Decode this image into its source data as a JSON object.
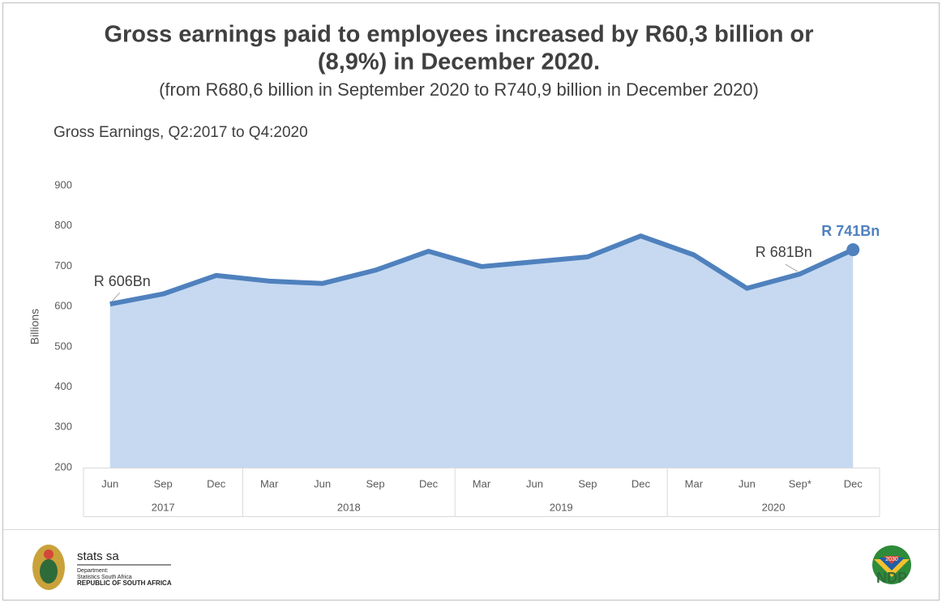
{
  "chart_data": {
    "type": "area-line",
    "title": "Gross earnings paid to employees increased by R60,3 billion or",
    "title_line2": "(8,9%) in December 2020.",
    "subtitle": "(from R680,6 billion in September 2020 to R740,9 billion in December 2020)",
    "chart_title": "Gross Earnings, Q2:2017 to Q4:2020",
    "y_label": "Billions",
    "categories": [
      "Jun",
      "Sep",
      "Dec",
      "Mar",
      "Jun",
      "Sep",
      "Dec",
      "Mar",
      "Jun",
      "Sep",
      "Dec",
      "Mar",
      "Jun",
      "Sep*",
      "Dec"
    ],
    "years": [
      "2017",
      null,
      null,
      "2018",
      null,
      null,
      null,
      "2019",
      null,
      null,
      null,
      "2020",
      null,
      null,
      null
    ],
    "values": [
      606,
      631,
      677,
      663,
      657,
      690,
      737,
      699,
      711,
      723,
      775,
      728,
      645,
      680.6,
      740.9
    ],
    "value_labels": [
      "R 606Bn",
      null,
      null,
      null,
      null,
      null,
      null,
      null,
      null,
      null,
      null,
      null,
      null,
      "R 681Bn",
      "R 741Bn"
    ],
    "color": "#4f81bd",
    "fill": "#c6d9f1",
    "ylim": [
      200,
      900
    ],
    "yticks": [
      200,
      300,
      400,
      500,
      600,
      700,
      800,
      900
    ],
    "grid": false
  },
  "footer": {
    "brand": "stats sa",
    "dept": "Department:",
    "org": "Statistics South Africa",
    "country": "REPUBLIC OF SOUTH AFRICA",
    "ndp": "NDP",
    "ndp_year": "2030"
  }
}
